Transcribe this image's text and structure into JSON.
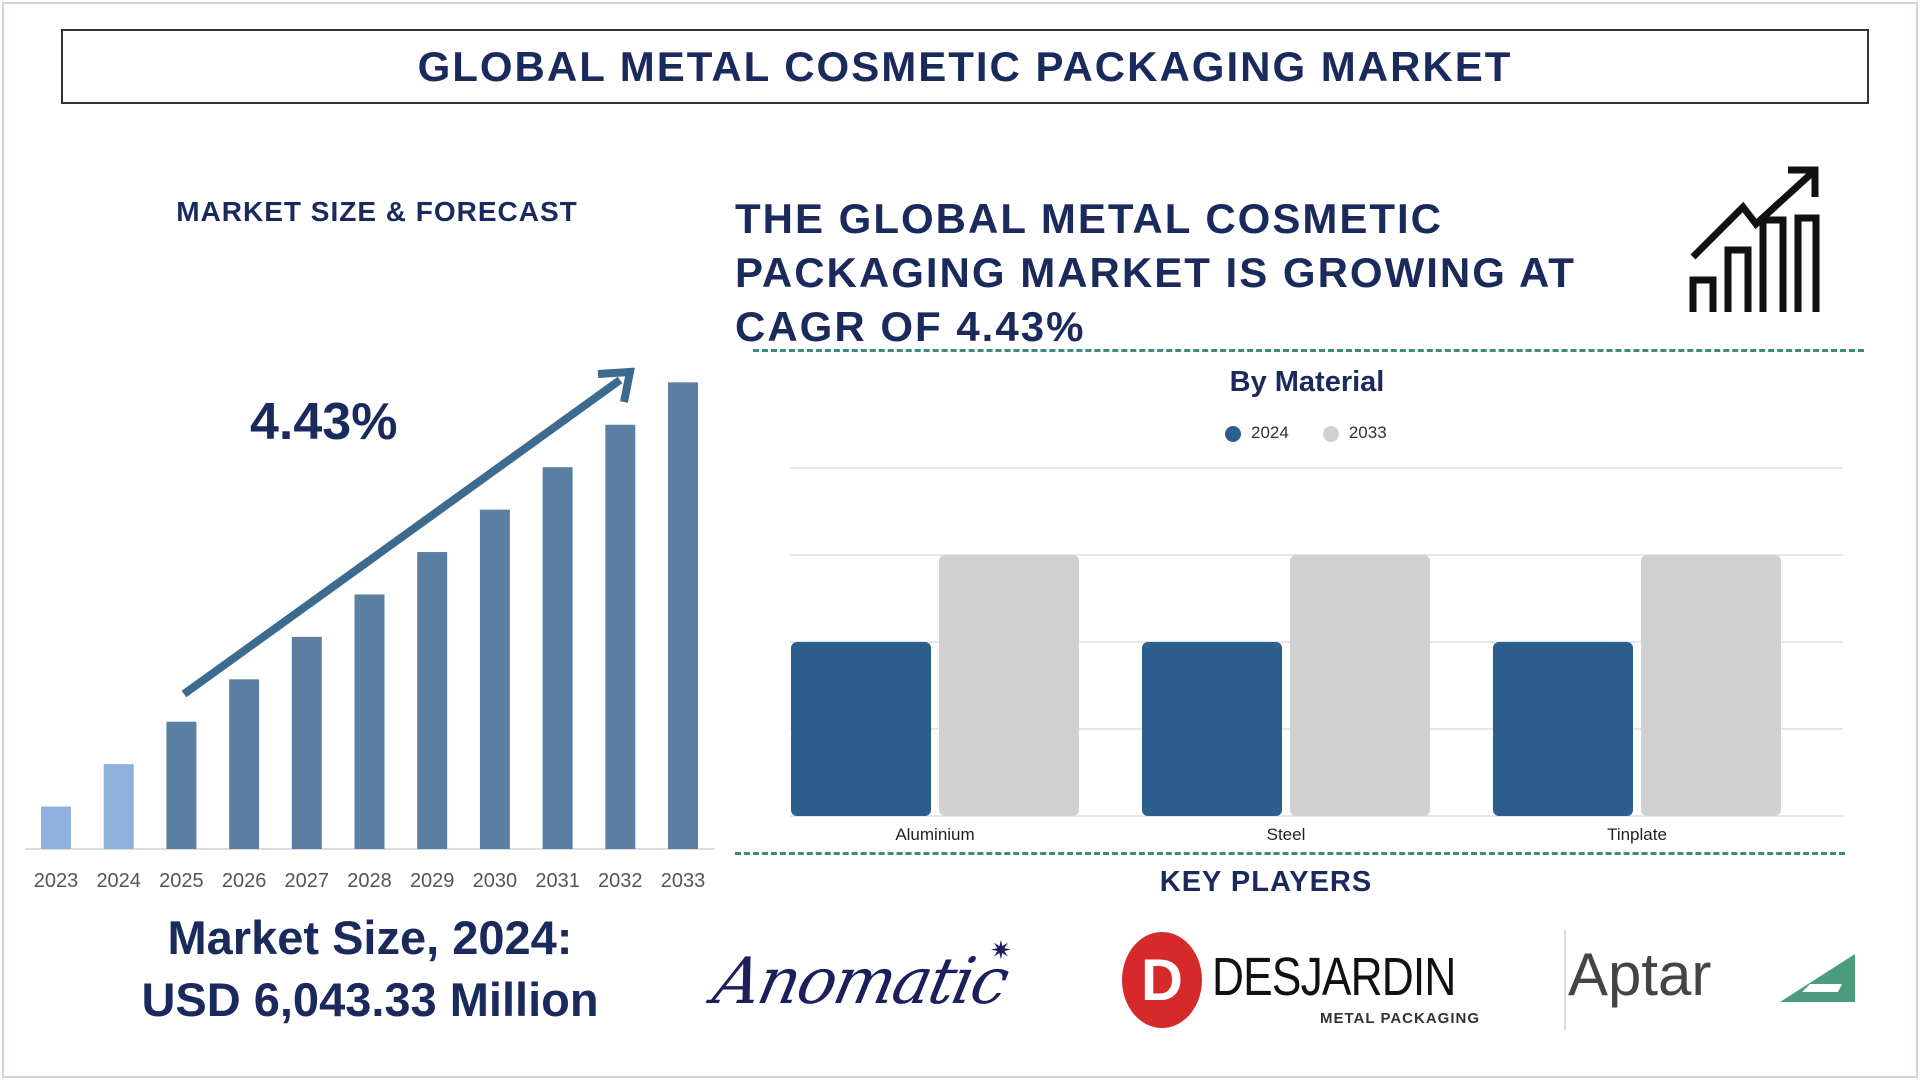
{
  "header": {
    "title": "GLOBAL METAL COSMETIC PACKAGING MARKET"
  },
  "left_panel": {
    "heading": "MARKET SIZE & FORECAST",
    "cagr_label": "4.43%",
    "market_size_line1": "Market Size, 2024:",
    "market_size_line2": "USD 6,043.33 Million"
  },
  "headline": {
    "lines": [
      "THE GLOBAL METAL COSMETIC",
      "PACKAGING MARKET IS GROWING AT",
      "CAGR OF 4.43%"
    ],
    "icon": "growth-chart-arrow-icon"
  },
  "key_players": {
    "heading": "KEY PLAYERS",
    "logos": [
      {
        "name": "Anomatic"
      },
      {
        "name": "DESJARDIN",
        "tagline": "METAL PACKAGING"
      },
      {
        "name": "Aptar"
      }
    ]
  },
  "chart_data": [
    {
      "type": "bar",
      "title": "MARKET SIZE & FORECAST",
      "categories": [
        "2023",
        "2024",
        "2025",
        "2026",
        "2027",
        "2028",
        "2029",
        "2030",
        "2031",
        "2032",
        "2033"
      ],
      "values": [
        1,
        2,
        3,
        4,
        5,
        6,
        7,
        8,
        9,
        10,
        11
      ],
      "annotation": "4.43%",
      "ylim": [
        0,
        11
      ],
      "grid": false,
      "colors": {
        "historical": "#8fb0dd",
        "forecast": "#5b7fa3",
        "arrow": "#3d6a8f"
      }
    },
    {
      "type": "bar",
      "title": "By Material",
      "categories": [
        "Aluminium",
        "Steel",
        "Tinplate"
      ],
      "series": [
        {
          "name": "2024",
          "values": [
            2,
            2,
            2
          ],
          "color": "#2c5f8e"
        },
        {
          "name": "2033",
          "values": [
            3,
            3,
            3
          ],
          "color": "#d0d0d0"
        }
      ],
      "ylim": [
        0,
        4
      ],
      "grid": true,
      "legend": "top-center"
    }
  ]
}
